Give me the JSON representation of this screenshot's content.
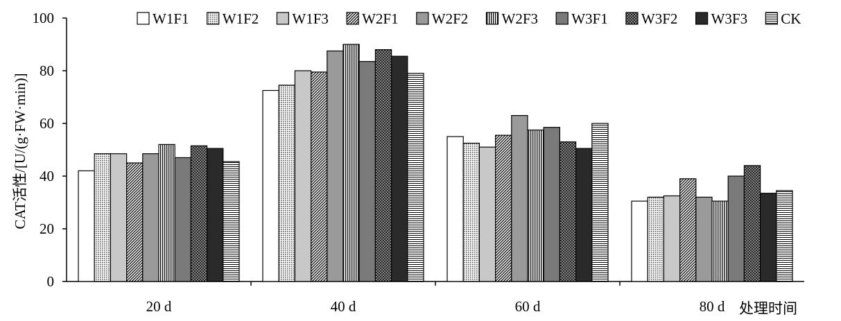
{
  "chart_data": {
    "type": "bar",
    "title": "",
    "xlabel": "处理时间",
    "ylabel": "CAT活性/[U/(g·FW·min)]",
    "ylim": [
      0,
      100
    ],
    "yticks": [
      "0",
      "20",
      "40",
      "60",
      "80",
      "100"
    ],
    "categories": [
      "20 d",
      "40 d",
      "60 d",
      "80 d"
    ],
    "legend_position": "top-right",
    "grid": false,
    "series": [
      {
        "name": "W1F1",
        "pattern": "white",
        "values": [
          42,
          72.5,
          55,
          30.5
        ]
      },
      {
        "name": "W1F2",
        "pattern": "dots",
        "values": [
          48.5,
          74.5,
          52.5,
          32
        ]
      },
      {
        "name": "W1F3",
        "pattern": "lightgray",
        "values": [
          48.5,
          80,
          51,
          32.5
        ]
      },
      {
        "name": "W2F1",
        "pattern": "diagonal",
        "values": [
          45,
          79.5,
          55.5,
          39
        ]
      },
      {
        "name": "W2F2",
        "pattern": "midgray",
        "values": [
          48.5,
          87.5,
          63,
          32
        ]
      },
      {
        "name": "W2F3",
        "pattern": "vertical",
        "values": [
          52,
          90,
          57.5,
          30.5
        ]
      },
      {
        "name": "W3F1",
        "pattern": "darkgray",
        "values": [
          47,
          83.5,
          58.5,
          40
        ]
      },
      {
        "name": "W3F2",
        "pattern": "checker",
        "values": [
          51.5,
          88,
          53,
          44
        ]
      },
      {
        "name": "W3F3",
        "pattern": "black",
        "values": [
          50.5,
          85.5,
          50.5,
          33.5
        ]
      },
      {
        "name": "CK",
        "pattern": "horizontal",
        "values": [
          45.5,
          79,
          60,
          34.5
        ]
      }
    ]
  }
}
